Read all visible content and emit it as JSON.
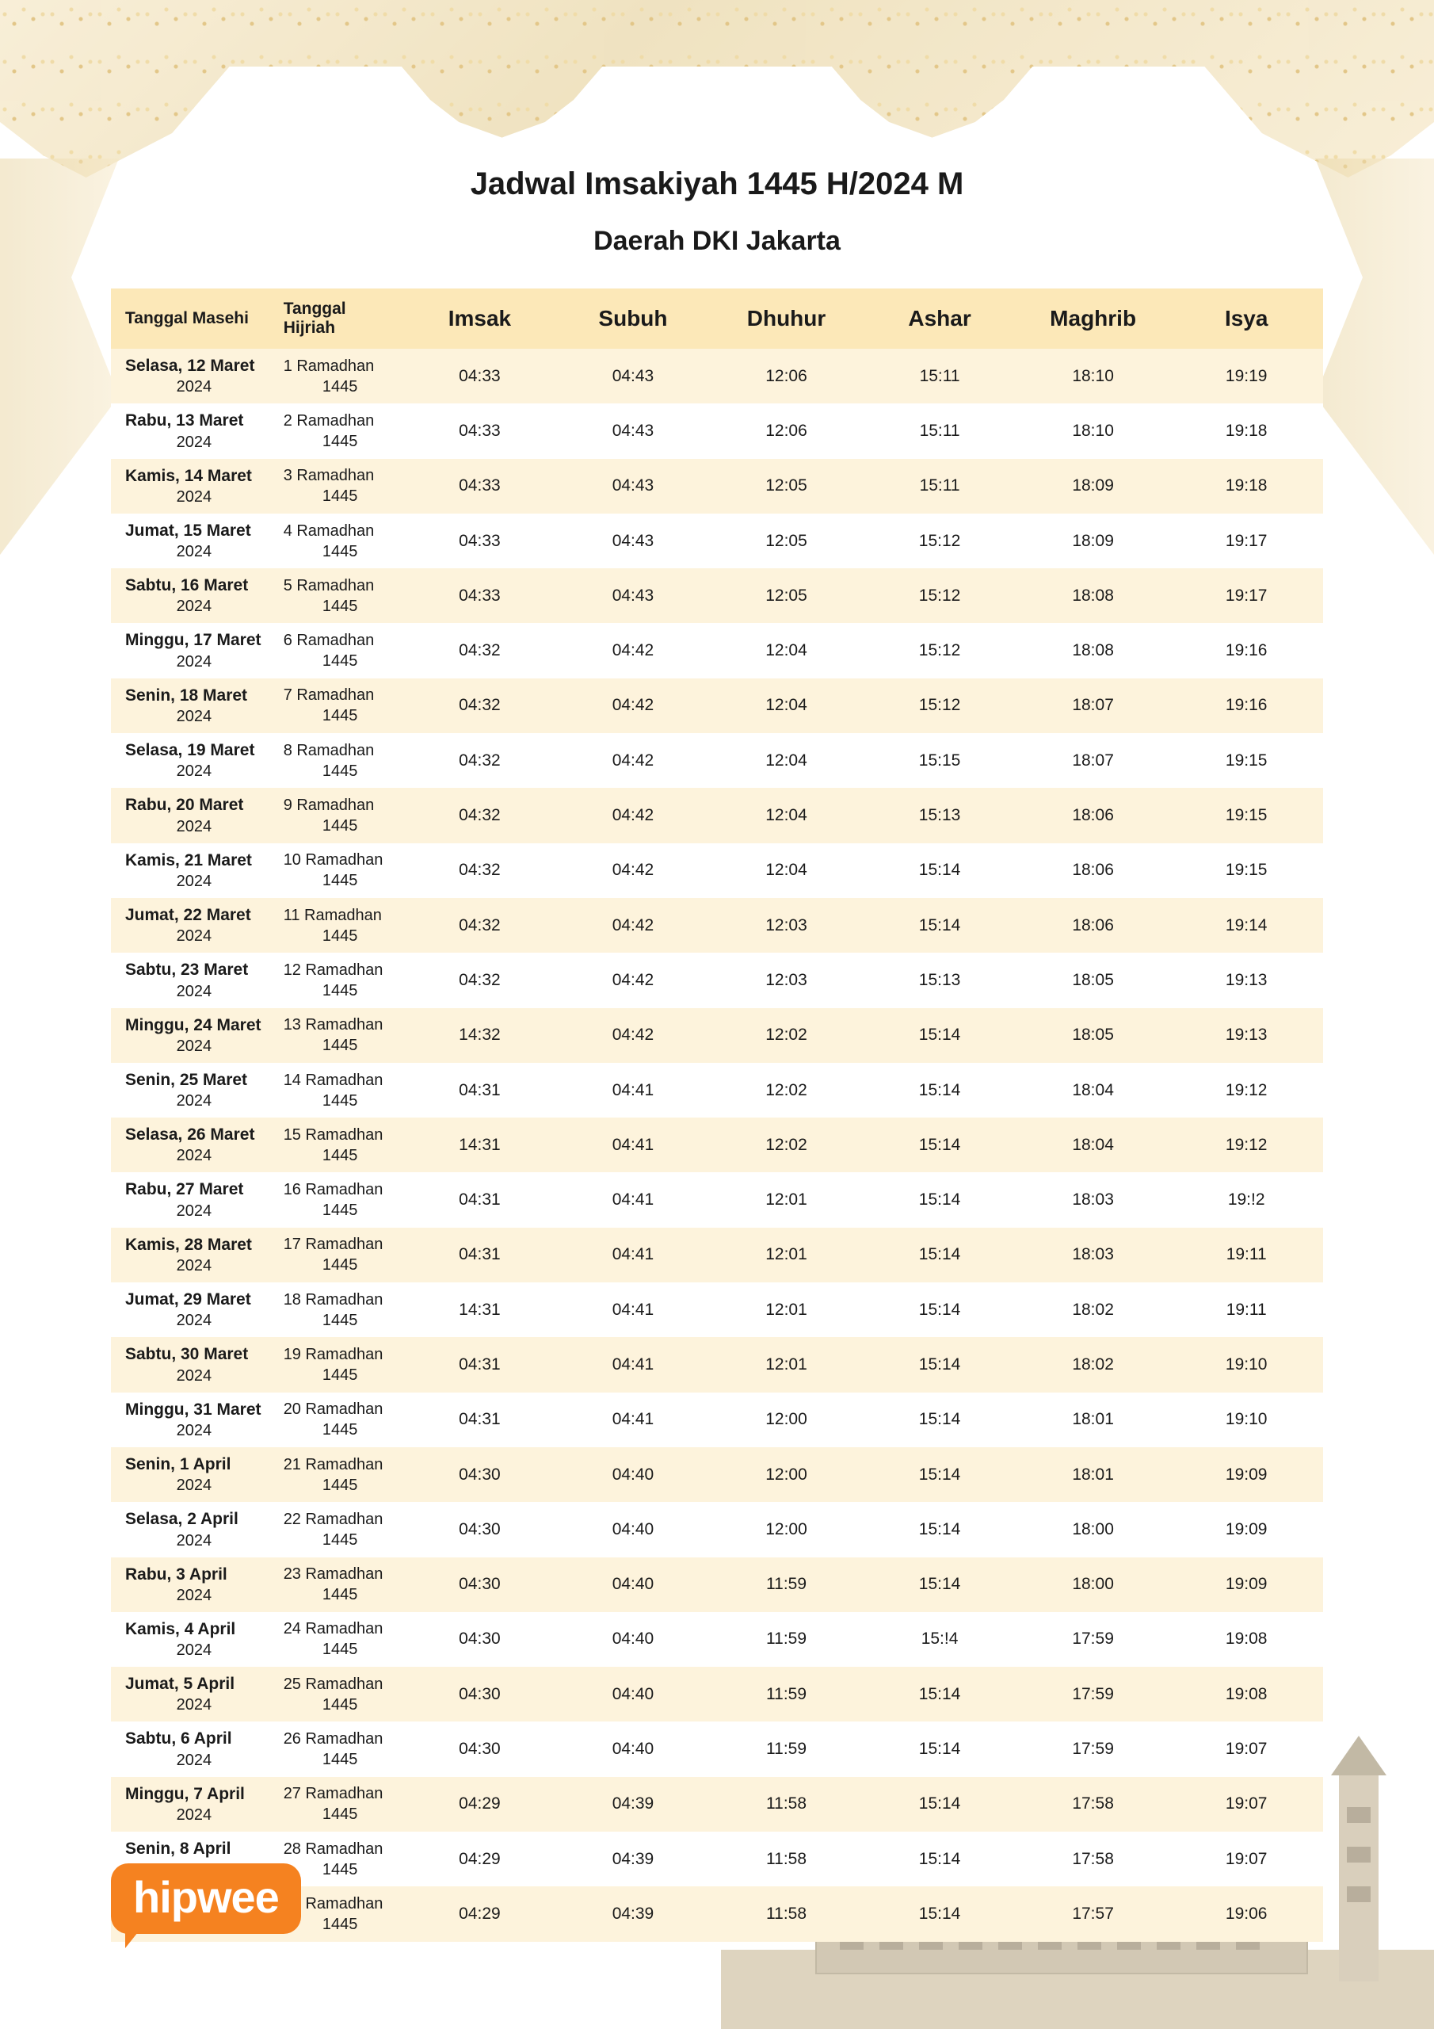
{
  "title": "Jadwal Imsakiyah 1445 H/2024 M",
  "subtitle": "Daerah DKI Jakarta",
  "logo_text": "hipwee",
  "colors": {
    "header_bg": "#fce8b8",
    "row_odd": "#fdf3dc",
    "row_even": "#ffffff",
    "text": "#1a1a1a",
    "logo_bg": "#f58220",
    "ornament": "#e8d4a0"
  },
  "columns": [
    {
      "key": "masehi",
      "label": "Tanggal Masehi",
      "type": "date"
    },
    {
      "key": "hijriah",
      "label": "Tanggal Hijriah",
      "type": "date"
    },
    {
      "key": "imsak",
      "label": "Imsak",
      "type": "time"
    },
    {
      "key": "subuh",
      "label": "Subuh",
      "type": "time"
    },
    {
      "key": "dhuhur",
      "label": "Dhuhur",
      "type": "time"
    },
    {
      "key": "ashar",
      "label": "Ashar",
      "type": "time"
    },
    {
      "key": "maghrib",
      "label": "Maghrib",
      "type": "time"
    },
    {
      "key": "isya",
      "label": "Isya",
      "type": "time"
    }
  ],
  "rows": [
    {
      "masehi_day": "Selasa, 12 Maret",
      "masehi_year": "2024",
      "hijriah_day": "1 Ramadhan",
      "hijriah_year": "1445",
      "imsak": "04:33",
      "subuh": "04:43",
      "dhuhur": "12:06",
      "ashar": "15:11",
      "maghrib": "18:10",
      "isya": "19:19"
    },
    {
      "masehi_day": "Rabu, 13 Maret",
      "masehi_year": "2024",
      "hijriah_day": "2 Ramadhan",
      "hijriah_year": "1445",
      "imsak": "04:33",
      "subuh": "04:43",
      "dhuhur": "12:06",
      "ashar": "15:11",
      "maghrib": "18:10",
      "isya": "19:18"
    },
    {
      "masehi_day": "Kamis, 14 Maret",
      "masehi_year": "2024",
      "hijriah_day": "3 Ramadhan",
      "hijriah_year": "1445",
      "imsak": "04:33",
      "subuh": "04:43",
      "dhuhur": "12:05",
      "ashar": "15:11",
      "maghrib": "18:09",
      "isya": "19:18"
    },
    {
      "masehi_day": "Jumat, 15 Maret",
      "masehi_year": "2024",
      "hijriah_day": "4 Ramadhan",
      "hijriah_year": "1445",
      "imsak": "04:33",
      "subuh": "04:43",
      "dhuhur": "12:05",
      "ashar": "15:12",
      "maghrib": "18:09",
      "isya": "19:17"
    },
    {
      "masehi_day": "Sabtu, 16 Maret",
      "masehi_year": "2024",
      "hijriah_day": "5 Ramadhan",
      "hijriah_year": "1445",
      "imsak": "04:33",
      "subuh": "04:43",
      "dhuhur": "12:05",
      "ashar": "15:12",
      "maghrib": "18:08",
      "isya": "19:17"
    },
    {
      "masehi_day": "Minggu, 17 Maret",
      "masehi_year": "2024",
      "hijriah_day": "6 Ramadhan",
      "hijriah_year": "1445",
      "imsak": "04:32",
      "subuh": "04:42",
      "dhuhur": "12:04",
      "ashar": "15:12",
      "maghrib": "18:08",
      "isya": "19:16"
    },
    {
      "masehi_day": "Senin, 18 Maret",
      "masehi_year": "2024",
      "hijriah_day": "7 Ramadhan",
      "hijriah_year": "1445",
      "imsak": "04:32",
      "subuh": "04:42",
      "dhuhur": "12:04",
      "ashar": "15:12",
      "maghrib": "18:07",
      "isya": "19:16"
    },
    {
      "masehi_day": "Selasa, 19 Maret",
      "masehi_year": "2024",
      "hijriah_day": "8 Ramadhan",
      "hijriah_year": "1445",
      "imsak": "04:32",
      "subuh": "04:42",
      "dhuhur": "12:04",
      "ashar": "15:15",
      "maghrib": "18:07",
      "isya": "19:15"
    },
    {
      "masehi_day": "Rabu, 20 Maret",
      "masehi_year": "2024",
      "hijriah_day": "9 Ramadhan",
      "hijriah_year": "1445",
      "imsak": "04:32",
      "subuh": "04:42",
      "dhuhur": "12:04",
      "ashar": "15:13",
      "maghrib": "18:06",
      "isya": "19:15"
    },
    {
      "masehi_day": "Kamis, 21 Maret",
      "masehi_year": "2024",
      "hijriah_day": "10 Ramadhan",
      "hijriah_year": "1445",
      "imsak": "04:32",
      "subuh": "04:42",
      "dhuhur": "12:04",
      "ashar": "15:14",
      "maghrib": "18:06",
      "isya": "19:15"
    },
    {
      "masehi_day": "Jumat, 22 Maret",
      "masehi_year": "2024",
      "hijriah_day": "11 Ramadhan",
      "hijriah_year": "1445",
      "imsak": "04:32",
      "subuh": "04:42",
      "dhuhur": "12:03",
      "ashar": "15:14",
      "maghrib": "18:06",
      "isya": "19:14"
    },
    {
      "masehi_day": "Sabtu, 23 Maret",
      "masehi_year": "2024",
      "hijriah_day": "12 Ramadhan",
      "hijriah_year": "1445",
      "imsak": "04:32",
      "subuh": "04:42",
      "dhuhur": "12:03",
      "ashar": "15:13",
      "maghrib": "18:05",
      "isya": "19:13"
    },
    {
      "masehi_day": "Minggu, 24 Maret",
      "masehi_year": "2024",
      "hijriah_day": "13 Ramadhan",
      "hijriah_year": "1445",
      "imsak": "14:32",
      "subuh": "04:42",
      "dhuhur": "12:02",
      "ashar": "15:14",
      "maghrib": "18:05",
      "isya": "19:13"
    },
    {
      "masehi_day": "Senin, 25 Maret",
      "masehi_year": "2024",
      "hijriah_day": "14 Ramadhan",
      "hijriah_year": "1445",
      "imsak": "04:31",
      "subuh": "04:41",
      "dhuhur": "12:02",
      "ashar": "15:14",
      "maghrib": "18:04",
      "isya": "19:12"
    },
    {
      "masehi_day": "Selasa, 26 Maret",
      "masehi_year": "2024",
      "hijriah_day": "15 Ramadhan",
      "hijriah_year": "1445",
      "imsak": "14:31",
      "subuh": "04:41",
      "dhuhur": "12:02",
      "ashar": "15:14",
      "maghrib": "18:04",
      "isya": "19:12"
    },
    {
      "masehi_day": "Rabu, 27 Maret",
      "masehi_year": "2024",
      "hijriah_day": "16 Ramadhan",
      "hijriah_year": "1445",
      "imsak": "04:31",
      "subuh": "04:41",
      "dhuhur": "12:01",
      "ashar": "15:14",
      "maghrib": "18:03",
      "isya": "19:!2"
    },
    {
      "masehi_day": "Kamis, 28 Maret",
      "masehi_year": "2024",
      "hijriah_day": "17 Ramadhan",
      "hijriah_year": "1445",
      "imsak": "04:31",
      "subuh": "04:41",
      "dhuhur": "12:01",
      "ashar": "15:14",
      "maghrib": "18:03",
      "isya": "19:11"
    },
    {
      "masehi_day": "Jumat, 29 Maret",
      "masehi_year": "2024",
      "hijriah_day": "18 Ramadhan",
      "hijriah_year": "1445",
      "imsak": "14:31",
      "subuh": "04:41",
      "dhuhur": "12:01",
      "ashar": "15:14",
      "maghrib": "18:02",
      "isya": "19:11"
    },
    {
      "masehi_day": "Sabtu, 30 Maret",
      "masehi_year": "2024",
      "hijriah_day": "19 Ramadhan",
      "hijriah_year": "1445",
      "imsak": "04:31",
      "subuh": "04:41",
      "dhuhur": "12:01",
      "ashar": "15:14",
      "maghrib": "18:02",
      "isya": "19:10"
    },
    {
      "masehi_day": "Minggu, 31 Maret",
      "masehi_year": "2024",
      "hijriah_day": "20 Ramadhan",
      "hijriah_year": "1445",
      "imsak": "04:31",
      "subuh": "04:41",
      "dhuhur": "12:00",
      "ashar": "15:14",
      "maghrib": "18:01",
      "isya": "19:10"
    },
    {
      "masehi_day": "Senin, 1 April",
      "masehi_year": "2024",
      "hijriah_day": "21 Ramadhan",
      "hijriah_year": "1445",
      "imsak": "04:30",
      "subuh": "04:40",
      "dhuhur": "12:00",
      "ashar": "15:14",
      "maghrib": "18:01",
      "isya": "19:09"
    },
    {
      "masehi_day": "Selasa, 2 April",
      "masehi_year": "2024",
      "hijriah_day": "22 Ramadhan",
      "hijriah_year": "1445",
      "imsak": "04:30",
      "subuh": "04:40",
      "dhuhur": "12:00",
      "ashar": "15:14",
      "maghrib": "18:00",
      "isya": "19:09"
    },
    {
      "masehi_day": "Rabu, 3 April",
      "masehi_year": "2024",
      "hijriah_day": "23 Ramadhan",
      "hijriah_year": "1445",
      "imsak": "04:30",
      "subuh": "04:40",
      "dhuhur": "11:59",
      "ashar": "15:14",
      "maghrib": "18:00",
      "isya": "19:09"
    },
    {
      "masehi_day": "Kamis, 4 April",
      "masehi_year": "2024",
      "hijriah_day": "24 Ramadhan",
      "hijriah_year": "1445",
      "imsak": "04:30",
      "subuh": "04:40",
      "dhuhur": "11:59",
      "ashar": "15:!4",
      "maghrib": "17:59",
      "isya": "19:08"
    },
    {
      "masehi_day": "Jumat, 5 April",
      "masehi_year": "2024",
      "hijriah_day": "25 Ramadhan",
      "hijriah_year": "1445",
      "imsak": "04:30",
      "subuh": "04:40",
      "dhuhur": "11:59",
      "ashar": "15:14",
      "maghrib": "17:59",
      "isya": "19:08"
    },
    {
      "masehi_day": "Sabtu, 6 April",
      "masehi_year": "2024",
      "hijriah_day": "26 Ramadhan",
      "hijriah_year": "1445",
      "imsak": "04:30",
      "subuh": "04:40",
      "dhuhur": "11:59",
      "ashar": "15:14",
      "maghrib": "17:59",
      "isya": "19:07"
    },
    {
      "masehi_day": "Minggu, 7 April",
      "masehi_year": "2024",
      "hijriah_day": "27 Ramadhan",
      "hijriah_year": "1445",
      "imsak": "04:29",
      "subuh": "04:39",
      "dhuhur": "11:58",
      "ashar": "15:14",
      "maghrib": "17:58",
      "isya": "19:07"
    },
    {
      "masehi_day": "Senin, 8 April",
      "masehi_year": "2024",
      "hijriah_day": "28 Ramadhan",
      "hijriah_year": "1445",
      "imsak": "04:29",
      "subuh": "04:39",
      "dhuhur": "11:58",
      "ashar": "15:14",
      "maghrib": "17:58",
      "isya": "19:07"
    },
    {
      "masehi_day": "Selasa, 9 April",
      "masehi_year": "2024",
      "hijriah_day": "29 Ramadhan",
      "hijriah_year": "1445",
      "imsak": "04:29",
      "subuh": "04:39",
      "dhuhur": "11:58",
      "ashar": "15:14",
      "maghrib": "17:57",
      "isya": "19:06"
    }
  ]
}
